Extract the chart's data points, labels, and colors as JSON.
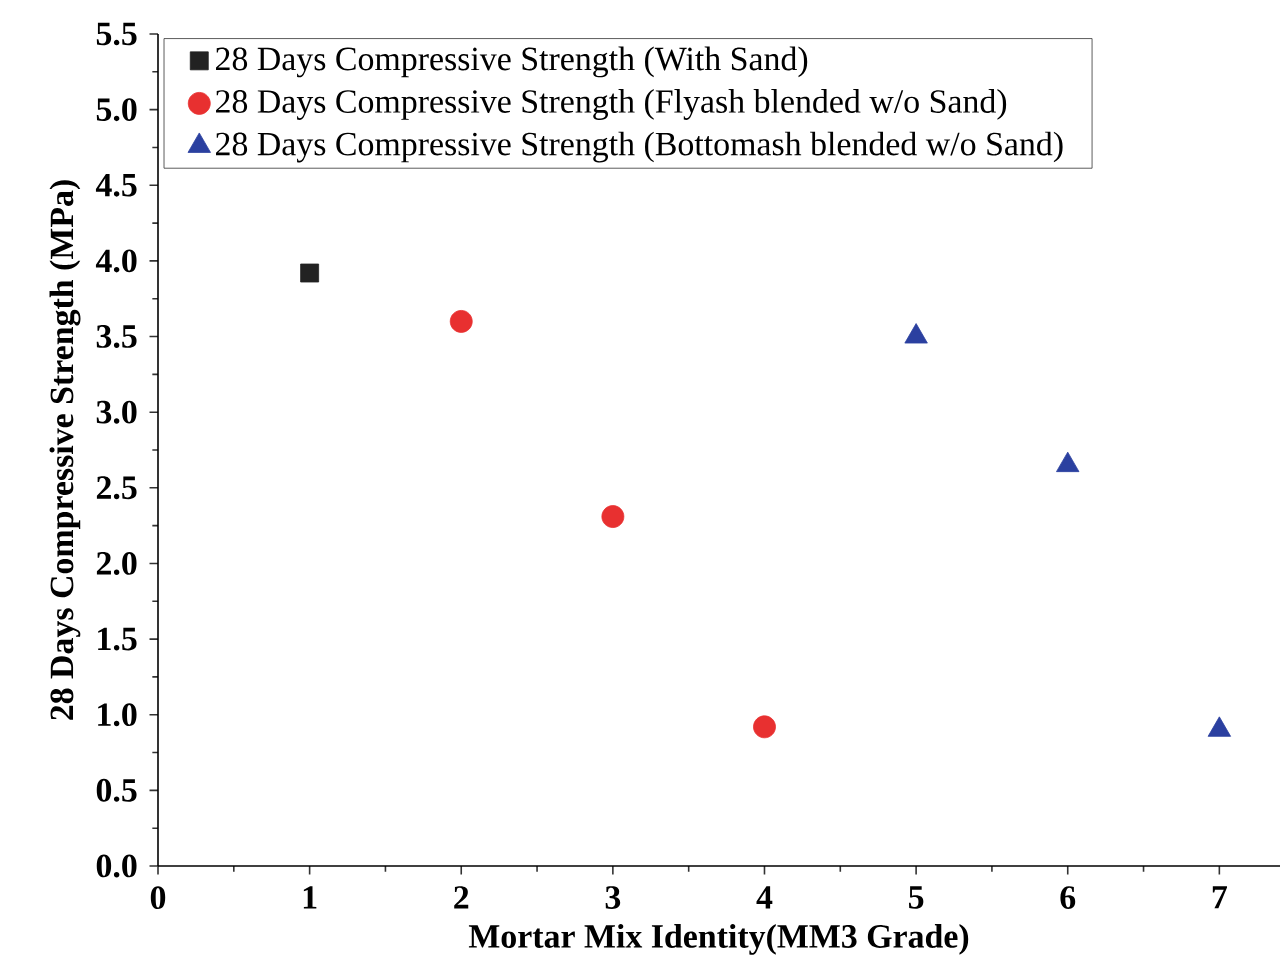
{
  "chart_data": {
    "type": "scatter",
    "xlabel": "Mortar Mix Identity(MM3 Grade)",
    "ylabel": "28 Days Compressive Strength (MPa)",
    "xlim": [
      0,
      7.4
    ],
    "xticks": [
      0,
      1,
      2,
      3,
      4,
      5,
      6,
      7
    ],
    "ylim": [
      0,
      5.5
    ],
    "yticks": [
      {
        "value": 0,
        "label": "0.0"
      },
      0.5,
      {
        "value": 1,
        "label": "1.0"
      },
      1.5,
      {
        "value": 2,
        "label": "2.0"
      },
      2.5,
      {
        "value": 3,
        "label": "3.0"
      },
      3.5,
      {
        "value": 4,
        "label": "4.0"
      },
      4.5,
      {
        "value": 5,
        "label": "5.0"
      },
      5.5
    ],
    "legend": "top left",
    "grid": false,
    "series": [
      {
        "name": "28 Days Compressive Strength (With Sand)",
        "color": "#222222",
        "marker": "square",
        "x": [
          1
        ],
        "values": [
          3.92
        ]
      },
      {
        "name": "28 Days Compressive Strength (Flyash blended w/o Sand)",
        "color": "#e83030",
        "marker": "circle",
        "x": [
          2,
          3,
          4
        ],
        "values": [
          3.6,
          2.31,
          0.92
        ]
      },
      {
        "name": "28 Days Compressive Strength (Bottomash blended w/o Sand)",
        "color": "#2b40a0",
        "marker": "triangle",
        "x": [
          5,
          6,
          7
        ],
        "values": [
          3.5,
          2.65,
          0.9
        ]
      }
    ]
  }
}
